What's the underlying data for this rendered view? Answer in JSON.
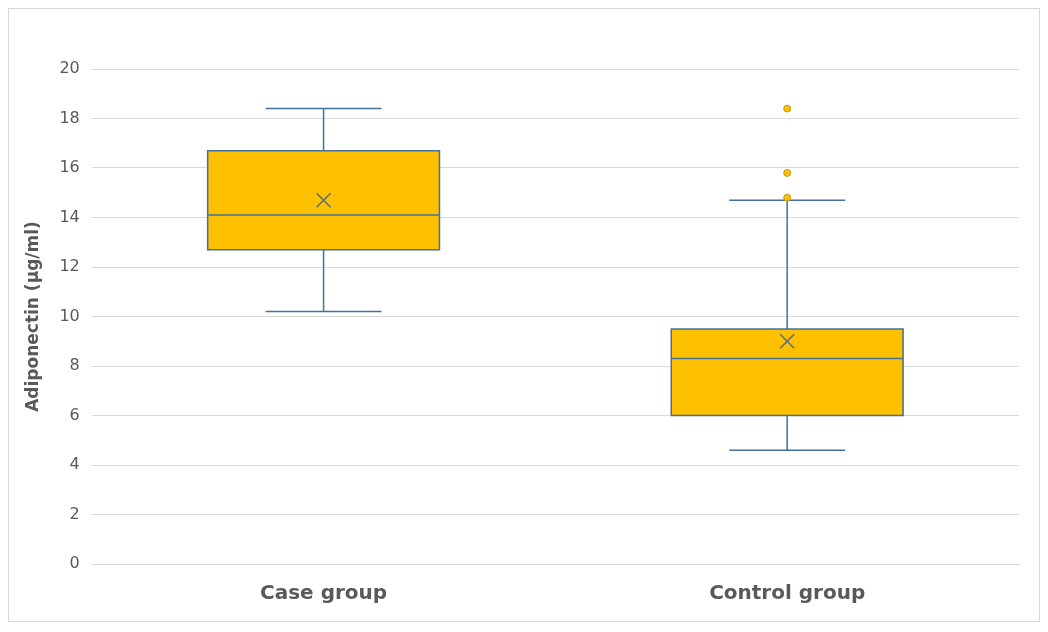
{
  "chart_data": {
    "type": "box",
    "ylabel": "Adiponectin (µg/ml)",
    "categories": [
      "Case group",
      "Control group"
    ],
    "ylim": [
      0,
      20
    ],
    "yticks": [
      0,
      2,
      4,
      6,
      8,
      10,
      12,
      14,
      16,
      18,
      20
    ],
    "grid": "y",
    "legend": false,
    "series": [
      {
        "color": "#ffc000",
        "boxes": [
          {
            "low": 10.2,
            "q1": 12.7,
            "median": 14.1,
            "q3": 16.7,
            "high": 18.4,
            "mean": 14.7
          },
          {
            "low": 4.6,
            "q1": 6.0,
            "median": 8.3,
            "q3": 9.5,
            "high": 14.7,
            "mean": 9.0,
            "outliers": [
              18.4,
              15.8,
              14.8
            ]
          }
        ]
      }
    ]
  }
}
